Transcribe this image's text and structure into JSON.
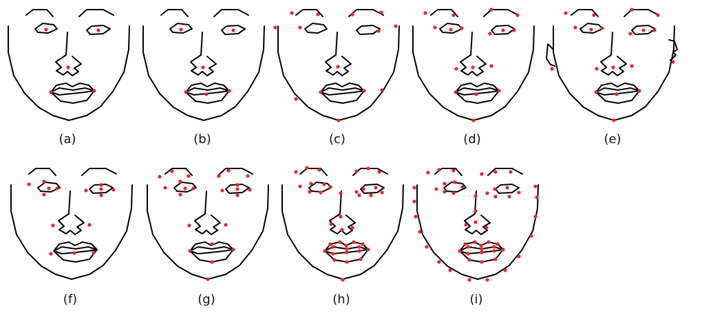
{
  "colors": {
    "line": "#000000",
    "landmark": "#e8262a",
    "background": "#ffffff"
  },
  "panels": [
    {
      "caption": "(a)",
      "landmark_set": "a"
    },
    {
      "caption": "(b)",
      "landmark_set": "b"
    },
    {
      "caption": "(c)",
      "landmark_set": "c"
    },
    {
      "caption": "(d)",
      "landmark_set": "d"
    },
    {
      "caption": "(e)",
      "landmark_set": "e",
      "ears": true
    },
    {
      "caption": "(f)",
      "landmark_set": "f"
    },
    {
      "caption": "(g)",
      "landmark_set": "g"
    },
    {
      "caption": "(h)",
      "landmark_set": "h"
    },
    {
      "caption": "(i)",
      "landmark_set": "i"
    }
  ]
}
